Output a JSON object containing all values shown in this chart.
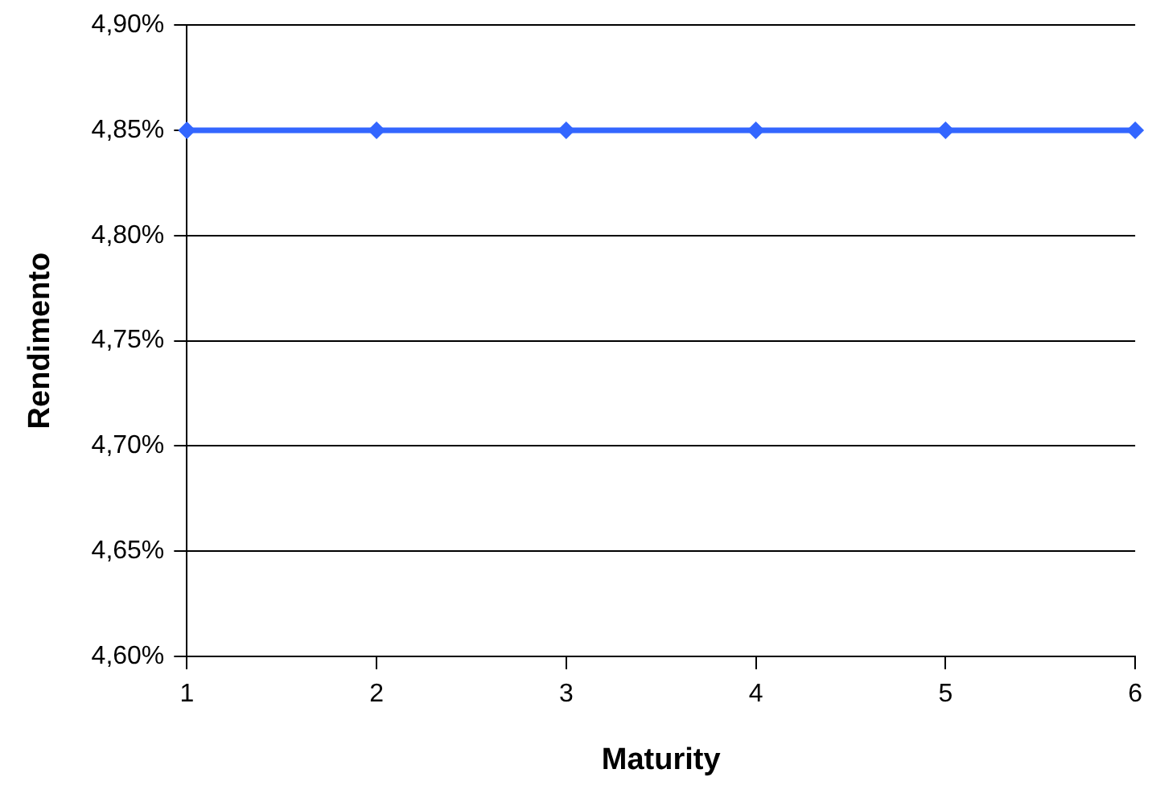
{
  "chart_data": {
    "type": "line",
    "xlabel": "Maturity",
    "ylabel": "Rendimento",
    "x": [
      1,
      2,
      3,
      4,
      5,
      6
    ],
    "series": [
      {
        "color": "#3366ff",
        "values": [
          4.85,
          4.85,
          4.85,
          4.85,
          4.85,
          4.85
        ]
      }
    ],
    "xlim": [
      1,
      6
    ],
    "xticks": [
      1,
      2,
      3,
      4,
      5,
      6
    ],
    "ylim": [
      4.6,
      4.9
    ],
    "yticks": [
      {
        "value": 4.6,
        "label": "4,60%"
      },
      {
        "value": 4.65,
        "label": "4,65%"
      },
      {
        "value": 4.7,
        "label": "4,70%"
      },
      {
        "value": 4.75,
        "label": "4,75%"
      },
      {
        "value": 4.8,
        "label": "4,80%"
      },
      {
        "value": 4.85,
        "label": "4,85%"
      },
      {
        "value": 4.9,
        "label": "4,90%"
      }
    ],
    "grid": "y",
    "legend": false,
    "marker": "diamond",
    "line_style": "solid"
  }
}
